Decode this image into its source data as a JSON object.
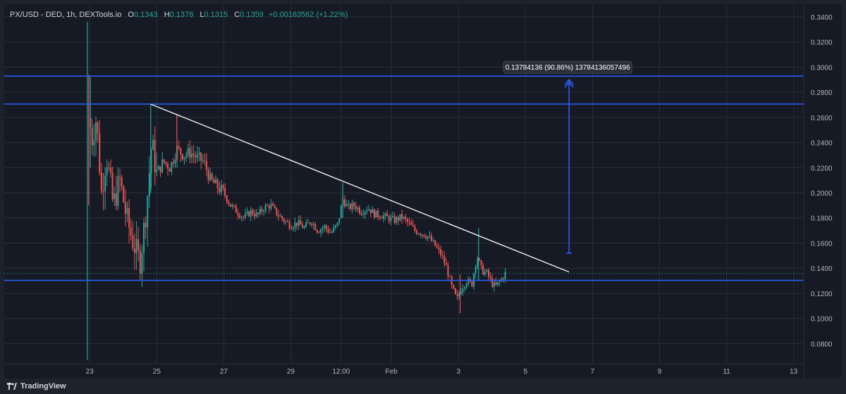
{
  "legend": {
    "symbol": "PX/USD - DED, 1h, DEXTools.io",
    "o_label": "O",
    "o_value": "0.1343",
    "h_label": "H",
    "h_value": "0.1378",
    "l_label": "L",
    "l_value": "0.1315",
    "c_label": "C",
    "c_value": "0.1359",
    "change": "+0.00163562 (+1.22%)"
  },
  "branding": {
    "name": "TradingView"
  },
  "colors": {
    "up": "#26a69a",
    "down": "#ef5350",
    "levels": "#2962ff",
    "trendline": "#ffffff",
    "grid": "#2a2e39",
    "text": "#b2b5be"
  },
  "chart_data": {
    "type": "candlestick",
    "y_axis": {
      "min": 0.064,
      "max": 0.35,
      "ticks": [
        "0.3400",
        "0.3200",
        "0.3000",
        "0.2800",
        "0.2600",
        "0.2400",
        "0.2200",
        "0.2000",
        "0.1800",
        "0.1600",
        "0.1400",
        "0.1200",
        "0.1000",
        "0.0800"
      ]
    },
    "x_axis": {
      "ticks": [
        {
          "label": "23",
          "day": 23.0
        },
        {
          "label": "25",
          "day": 25.0
        },
        {
          "label": "27",
          "day": 27.0
        },
        {
          "label": "29",
          "day": 29.0
        },
        {
          "label": "12:00",
          "day": 30.5
        },
        {
          "label": "Feb",
          "day": 32.0
        },
        {
          "label": "3",
          "day": 34.0
        },
        {
          "label": "5",
          "day": 36.0
        },
        {
          "label": "7",
          "day": 38.0
        },
        {
          "label": "9",
          "day": 40.0
        },
        {
          "label": "11",
          "day": 42.0
        },
        {
          "label": "13",
          "day": 44.0
        }
      ]
    },
    "price_path": [
      [
        22.9,
        0.08
      ],
      [
        22.95,
        0.28
      ],
      [
        23.05,
        0.24
      ],
      [
        23.2,
        0.26
      ],
      [
        23.35,
        0.2
      ],
      [
        23.5,
        0.23
      ],
      [
        23.7,
        0.19
      ],
      [
        23.9,
        0.21
      ],
      [
        24.1,
        0.18
      ],
      [
        24.3,
        0.16
      ],
      [
        24.5,
        0.145
      ],
      [
        24.7,
        0.19
      ],
      [
        24.85,
        0.24
      ],
      [
        25.0,
        0.215
      ],
      [
        25.2,
        0.225
      ],
      [
        25.4,
        0.22
      ],
      [
        25.6,
        0.235
      ],
      [
        25.8,
        0.23
      ],
      [
        26.0,
        0.232
      ],
      [
        26.2,
        0.228
      ],
      [
        26.4,
        0.225
      ],
      [
        26.6,
        0.21
      ],
      [
        26.8,
        0.205
      ],
      [
        27.0,
        0.2
      ],
      [
        27.2,
        0.19
      ],
      [
        27.4,
        0.185
      ],
      [
        27.6,
        0.18
      ],
      [
        27.8,
        0.185
      ],
      [
        28.0,
        0.182
      ],
      [
        28.2,
        0.188
      ],
      [
        28.4,
        0.19
      ],
      [
        28.6,
        0.183
      ],
      [
        28.8,
        0.178
      ],
      [
        29.0,
        0.174
      ],
      [
        29.2,
        0.176
      ],
      [
        29.4,
        0.172
      ],
      [
        29.6,
        0.178
      ],
      [
        29.8,
        0.17
      ],
      [
        30.0,
        0.173
      ],
      [
        30.2,
        0.168
      ],
      [
        30.4,
        0.175
      ],
      [
        30.55,
        0.195
      ],
      [
        30.7,
        0.188
      ],
      [
        30.9,
        0.19
      ],
      [
        31.1,
        0.185
      ],
      [
        31.3,
        0.188
      ],
      [
        31.5,
        0.183
      ],
      [
        31.7,
        0.182
      ],
      [
        31.9,
        0.18
      ],
      [
        32.1,
        0.178
      ],
      [
        32.3,
        0.181
      ],
      [
        32.5,
        0.176
      ],
      [
        32.7,
        0.17
      ],
      [
        32.9,
        0.168
      ],
      [
        33.1,
        0.165
      ],
      [
        33.3,
        0.158
      ],
      [
        33.5,
        0.15
      ],
      [
        33.65,
        0.14
      ],
      [
        33.8,
        0.125
      ],
      [
        33.95,
        0.115
      ],
      [
        34.1,
        0.125
      ],
      [
        34.25,
        0.13
      ],
      [
        34.4,
        0.127
      ],
      [
        34.55,
        0.15
      ],
      [
        34.7,
        0.138
      ],
      [
        34.85,
        0.136
      ],
      [
        35.0,
        0.128
      ],
      [
        35.1,
        0.125
      ],
      [
        35.25,
        0.13
      ],
      [
        35.4,
        0.1359
      ]
    ],
    "spikes": [
      {
        "day": 22.93,
        "high": 0.336,
        "low": 0.067,
        "up": true
      },
      {
        "day": 22.97,
        "high": 0.294,
        "low": 0.19,
        "up": false
      },
      {
        "day": 23.02,
        "high": 0.292,
        "low": 0.22,
        "up": true
      },
      {
        "day": 24.82,
        "high": 0.27,
        "low": 0.2,
        "up": true
      },
      {
        "day": 25.6,
        "high": 0.262,
        "low": 0.225,
        "up": false
      },
      {
        "day": 30.55,
        "high": 0.208,
        "low": 0.18,
        "up": true
      },
      {
        "day": 34.6,
        "high": 0.172,
        "low": 0.13,
        "up": true
      },
      {
        "day": 34.05,
        "high": 0.135,
        "low": 0.104,
        "up": false
      }
    ],
    "horizontal_levels": [
      {
        "value": 0.2928,
        "label": "0.2928"
      },
      {
        "value": 0.2706,
        "label": "0.2706"
      },
      {
        "value": 0.1303,
        "label": "0.1303"
      }
    ],
    "current_price": {
      "value": 0.1359,
      "label": "0.1359"
    },
    "trendline": {
      "start": [
        24.82,
        0.2705
      ],
      "end": [
        37.3,
        0.137
      ]
    },
    "measure_arrow": {
      "day": 37.3,
      "from": 0.152,
      "to": 0.29,
      "label": "0.13784136 (90.86%) 13784136057496"
    }
  }
}
